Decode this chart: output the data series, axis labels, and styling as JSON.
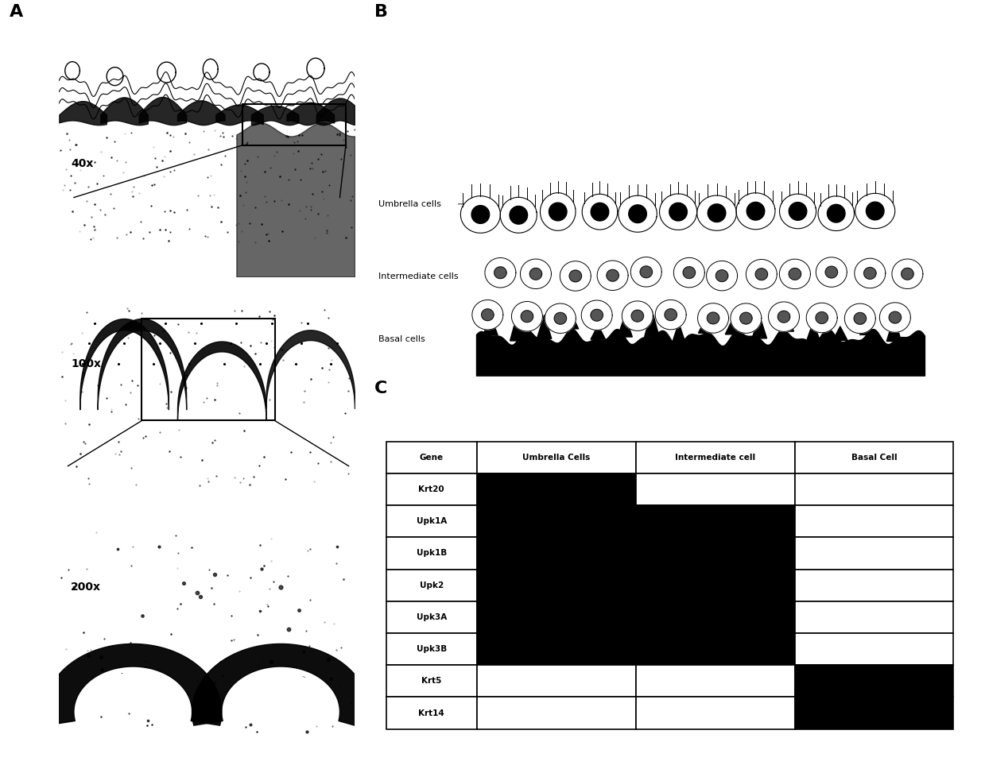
{
  "panel_labels": [
    "A",
    "B",
    "C"
  ],
  "magnifications": [
    "40x",
    "100x",
    "200x"
  ],
  "cell_labels_B": [
    "Umbrella cells",
    "Intermediate cells",
    "Basal cells"
  ],
  "table_header": [
    "Gene",
    "Umbrella Cells",
    "Intermediate cell",
    "Basal Cell"
  ],
  "table_genes": [
    "Krt20",
    "Upk1A",
    "Upk1B",
    "Upk2",
    "Upk3A",
    "Upk3B",
    "Krt5",
    "Krt14"
  ],
  "table_data": [
    [
      1,
      0,
      0
    ],
    [
      1,
      1,
      0
    ],
    [
      1,
      1,
      0
    ],
    [
      1,
      1,
      0
    ],
    [
      1,
      1,
      0
    ],
    [
      1,
      1,
      0
    ],
    [
      0,
      0,
      1
    ],
    [
      0,
      0,
      1
    ]
  ],
  "fig_width": 12.39,
  "fig_height": 9.68,
  "bg_color": "#ffffff"
}
